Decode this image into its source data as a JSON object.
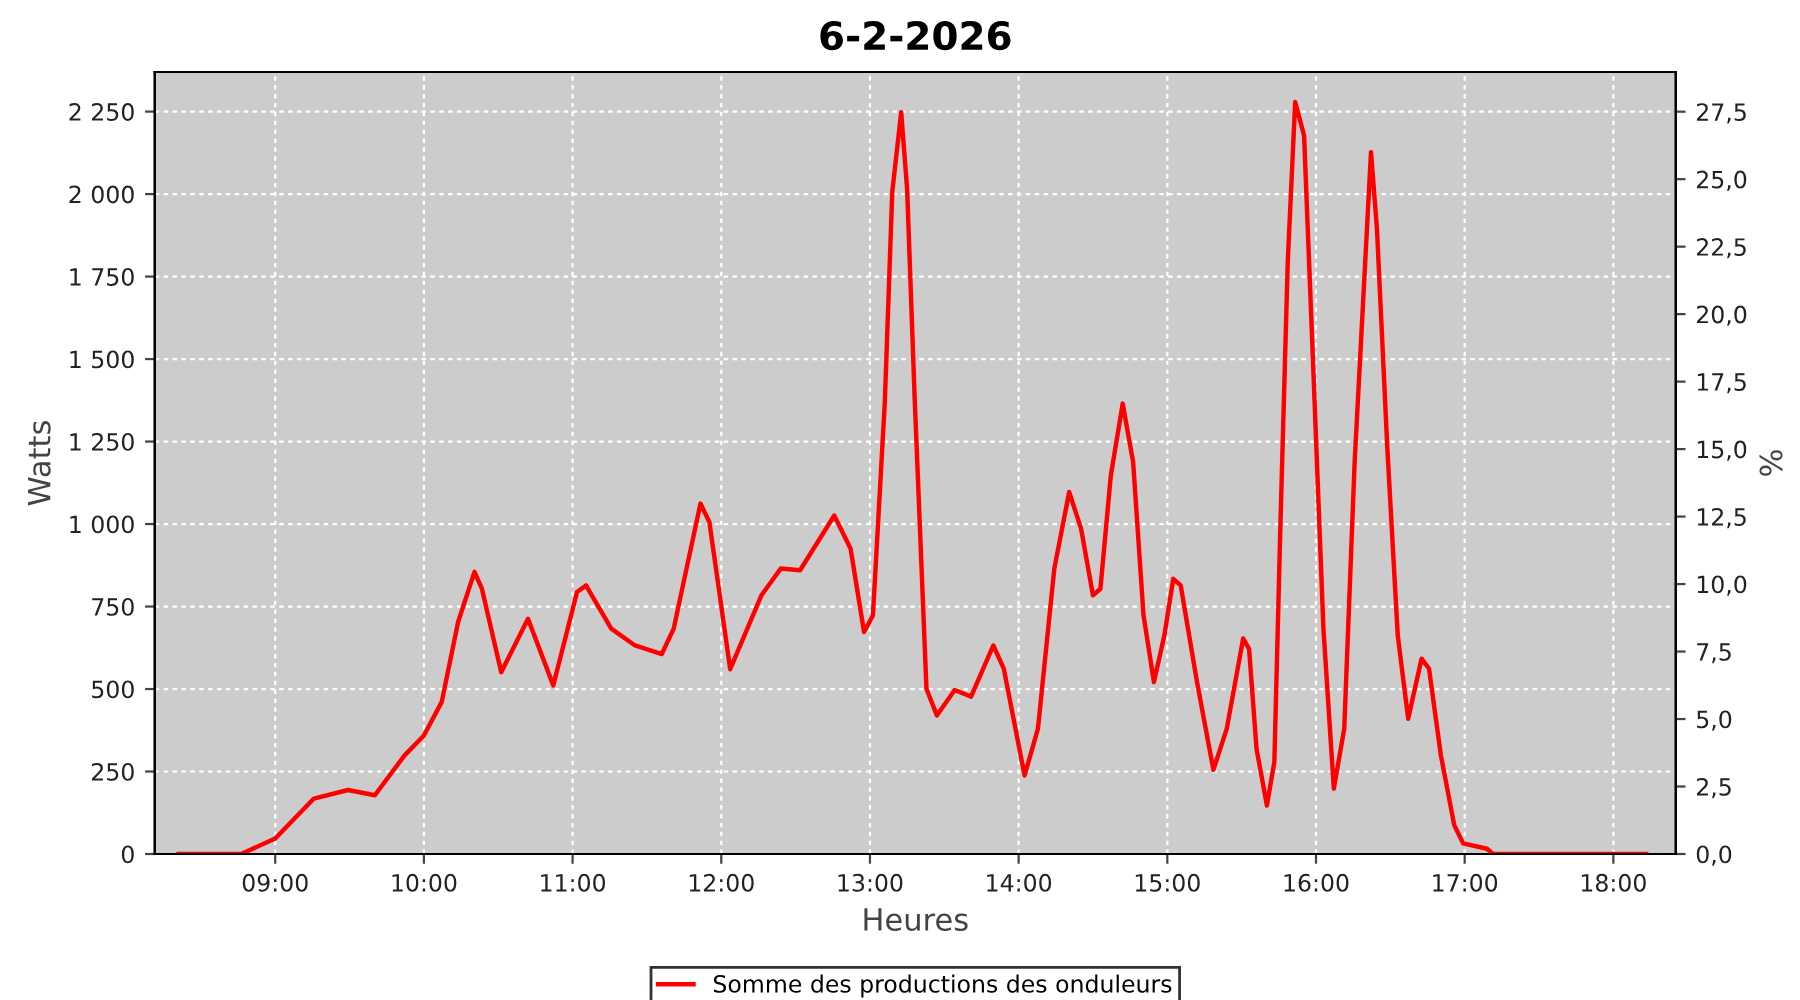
{
  "chart_data": {
    "type": "line",
    "title": "6-2-2026",
    "xlabel": "Heures",
    "ylabel": "Watts",
    "y2label": "%",
    "xlim": [
      8.19,
      18.42
    ],
    "xticks": [
      {
        "value": 9,
        "label": "09:00"
      },
      {
        "value": 10,
        "label": "10:00"
      },
      {
        "value": 11,
        "label": "11:00"
      },
      {
        "value": 12,
        "label": "12:00"
      },
      {
        "value": 13,
        "label": "13:00"
      },
      {
        "value": 14,
        "label": "14:00"
      },
      {
        "value": 15,
        "label": "15:00"
      },
      {
        "value": 16,
        "label": "16:00"
      },
      {
        "value": 17,
        "label": "17:00"
      },
      {
        "value": 18,
        "label": "18:00"
      }
    ],
    "ylim": [
      0,
      2370
    ],
    "yticks": [
      0,
      250,
      500,
      750,
      {
        "value": 1000,
        "label": "1 000"
      },
      {
        "value": 1250,
        "label": "1 250"
      },
      {
        "value": 1500,
        "label": "1 500"
      },
      {
        "value": 1750,
        "label": "1 750"
      },
      {
        "value": 2000,
        "label": "2 000"
      },
      {
        "value": 2250,
        "label": "2 250"
      }
    ],
    "y2lim": [
      0,
      28.97
    ],
    "y2ticks": [
      {
        "value": 0,
        "label": "0,0"
      },
      {
        "value": 2.5,
        "label": "2,5"
      },
      {
        "value": 5,
        "label": "5,0"
      },
      {
        "value": 7.5,
        "label": "7,5"
      },
      {
        "value": 10,
        "label": "10,0"
      },
      {
        "value": 12.5,
        "label": "12,5"
      },
      {
        "value": 15,
        "label": "15,0"
      },
      {
        "value": 17.5,
        "label": "17,5"
      },
      {
        "value": 20,
        "label": "20,0"
      },
      {
        "value": 22.5,
        "label": "22,5"
      },
      {
        "value": 25,
        "label": "25,0"
      },
      {
        "value": 27.5,
        "label": "27,5"
      }
    ],
    "grid": true,
    "legend": "bottom",
    "marker": "none",
    "line_style": "solid",
    "series": [
      {
        "name": "Somme des productions des onduleurs",
        "color": "#ff0000",
        "x": [
          8.35,
          8.77,
          9.0,
          9.26,
          9.49,
          9.67,
          9.87,
          10.0,
          10.12,
          10.23,
          10.34,
          10.39,
          10.52,
          10.7,
          10.87,
          11.03,
          11.09,
          11.26,
          11.42,
          11.6,
          11.68,
          11.86,
          11.92,
          12.06,
          12.27,
          12.4,
          12.53,
          12.76,
          12.87,
          12.96,
          13.02,
          13.1,
          13.15,
          13.21,
          13.25,
          13.3,
          13.38,
          13.45,
          13.57,
          13.68,
          13.83,
          13.9,
          14.04,
          14.13,
          14.24,
          14.34,
          14.42,
          14.5,
          14.55,
          14.62,
          14.7,
          14.77,
          14.84,
          14.91,
          14.98,
          15.04,
          15.09,
          15.2,
          15.31,
          15.4,
          15.51,
          15.55,
          15.6,
          15.67,
          15.72,
          15.76,
          15.81,
          15.86,
          15.92,
          15.98,
          16.05,
          16.12,
          16.19,
          16.26,
          16.37,
          16.41,
          16.48,
          16.55,
          16.62,
          16.71,
          16.76,
          16.84,
          16.93,
          16.99,
          17.15,
          17.19,
          18.22
        ],
        "values": [
          0,
          0,
          47,
          168,
          194,
          178,
          299,
          359,
          461,
          703,
          855,
          804,
          551,
          713,
          511,
          794,
          814,
          683,
          632,
          606,
          683,
          1062,
          1006,
          560,
          784,
          865,
          860,
          1026,
          925,
          673,
          723,
          1370,
          2006,
          2248,
          2016,
          1390,
          501,
          420,
          497,
          477,
          632,
          562,
          238,
          380,
          865,
          1097,
          986,
          784,
          804,
          1147,
          1365,
          1188,
          723,
          521,
          662,
          834,
          814,
          521,
          255,
          380,
          653,
          622,
          319,
          147,
          279,
          986,
          1794,
          2279,
          2177,
          1491,
          683,
          198,
          380,
          1188,
          2127,
          1895,
          1228,
          662,
          410,
          592,
          562,
          299,
          87,
          32,
          16,
          0,
          0
        ]
      }
    ]
  }
}
